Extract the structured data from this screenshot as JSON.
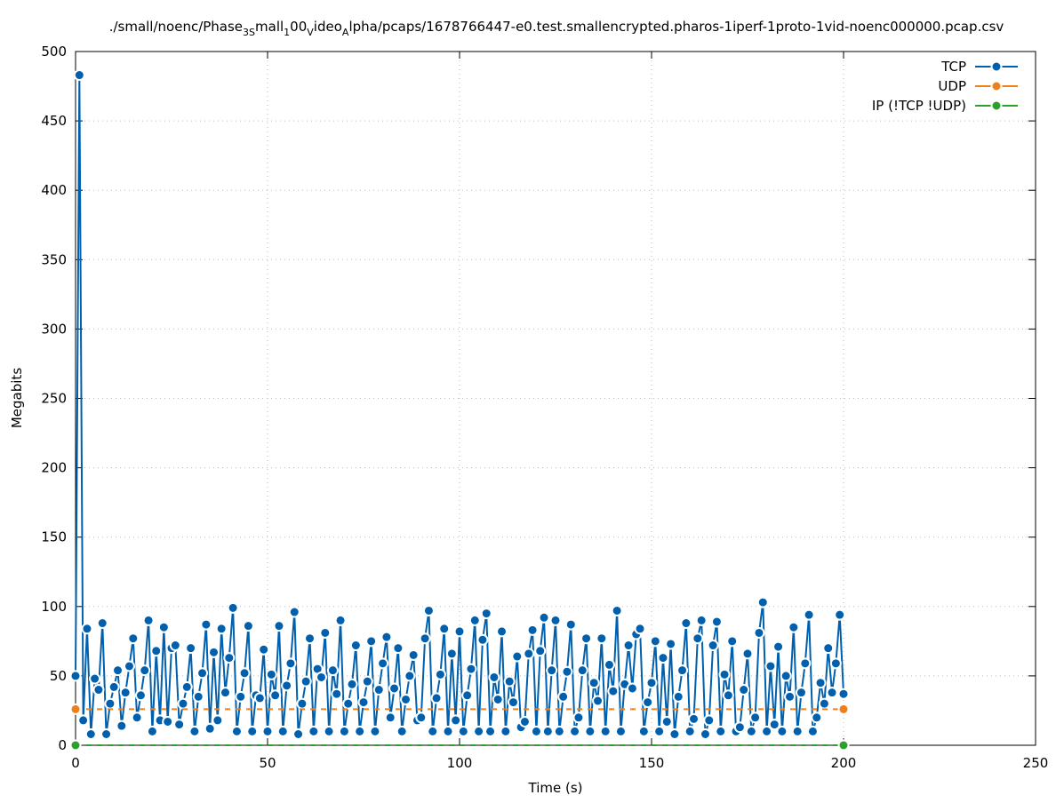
{
  "chart_data": {
    "type": "line",
    "title_parts": [
      {
        "text": "./small/noenc/Phase",
        "sub": false
      },
      {
        "text": "3S",
        "sub": true
      },
      {
        "text": "mall",
        "sub": false
      },
      {
        "text": "1",
        "sub": true
      },
      {
        "text": "00",
        "sub": false
      },
      {
        "text": "V",
        "sub": true
      },
      {
        "text": "ideo",
        "sub": false
      },
      {
        "text": "A",
        "sub": true
      },
      {
        "text": "lpha/pcaps/1678766447-e0.test.smallencrypted.pharos-1iperf-1proto-1vid-noenc000000.pcap.csv",
        "sub": false
      }
    ],
    "xlabel": "Time (s)",
    "ylabel": "Megabits",
    "xlim": [
      0,
      250
    ],
    "xticks": [
      0,
      50,
      100,
      150,
      200,
      250
    ],
    "ylim": [
      0,
      500
    ],
    "yticks": [
      0,
      50,
      100,
      150,
      200,
      250,
      300,
      350,
      400,
      450,
      500
    ],
    "grid": true,
    "legend": "top-right",
    "series": [
      {
        "name": "TCP",
        "color": "#0060ad",
        "x": [
          0,
          1,
          2,
          3,
          4,
          5,
          6,
          7,
          8,
          9,
          10,
          11,
          12,
          13,
          14,
          15,
          16,
          17,
          18,
          19,
          20,
          21,
          22,
          23,
          24,
          25,
          26,
          27,
          28,
          29,
          30,
          31,
          32,
          33,
          34,
          35,
          36,
          37,
          38,
          39,
          40,
          41,
          42,
          43,
          44,
          45,
          46,
          47,
          48,
          49,
          50,
          51,
          52,
          53,
          54,
          55,
          56,
          57,
          58,
          59,
          60,
          61,
          62,
          63,
          64,
          65,
          66,
          67,
          68,
          69,
          70,
          71,
          72,
          73,
          74,
          75,
          76,
          77,
          78,
          79,
          80,
          81,
          82,
          83,
          84,
          85,
          86,
          87,
          88,
          89,
          90,
          91,
          92,
          93,
          94,
          95,
          96,
          97,
          98,
          99,
          100,
          101,
          102,
          103,
          104,
          105,
          106,
          107,
          108,
          109,
          110,
          111,
          112,
          113,
          114,
          115,
          116,
          117,
          118,
          119,
          120,
          121,
          122,
          123,
          124,
          125,
          126,
          127,
          128,
          129,
          130,
          131,
          132,
          133,
          134,
          135,
          136,
          137,
          138,
          139,
          140,
          141,
          142,
          143,
          144,
          145,
          146,
          147,
          148,
          149,
          150,
          151,
          152,
          153,
          154,
          155,
          156,
          157,
          158,
          159,
          160,
          161,
          162,
          163,
          164,
          165,
          166,
          167,
          168,
          169,
          170,
          171,
          172,
          173,
          174,
          175,
          176,
          177,
          178,
          179,
          180,
          181,
          182,
          183,
          184,
          185,
          186,
          187,
          188,
          189,
          190,
          191,
          192,
          193,
          194,
          195,
          196,
          197,
          198,
          199,
          200
        ],
        "values": [
          50,
          483,
          18,
          84,
          8,
          48,
          40,
          88,
          8,
          30,
          42,
          54,
          14,
          38,
          57,
          77,
          20,
          36,
          54,
          90,
          10,
          68,
          18,
          85,
          17,
          70,
          72,
          15,
          30,
          42,
          70,
          10,
          35,
          52,
          87,
          12,
          67,
          18,
          84,
          38,
          63,
          99,
          10,
          35,
          52,
          86,
          10,
          36,
          34,
          69,
          10,
          51,
          36,
          86,
          10,
          43,
          59,
          96,
          8,
          30,
          46,
          77,
          10,
          55,
          49,
          81,
          10,
          54,
          37,
          90,
          10,
          30,
          44,
          72,
          10,
          31,
          46,
          75,
          10,
          40,
          59,
          78,
          20,
          41,
          70,
          10,
          33,
          50,
          65,
          18,
          20,
          77,
          97,
          10,
          34,
          51,
          84,
          10,
          66,
          18,
          82,
          10,
          36,
          55,
          90,
          10,
          76,
          95,
          10,
          49,
          33,
          82,
          10,
          46,
          31,
          64,
          13,
          17,
          66,
          83,
          10,
          68,
          92,
          10,
          54,
          90,
          10,
          35,
          53,
          87,
          10,
          20,
          54,
          77,
          10,
          45,
          32,
          77,
          10,
          58,
          39,
          97,
          10,
          44,
          72,
          41,
          80,
          84,
          10,
          31,
          45,
          75,
          10,
          63,
          17,
          73,
          8,
          35,
          54,
          88,
          10,
          19,
          77,
          90,
          8,
          18,
          72,
          89,
          10,
          51,
          36,
          75,
          10,
          13,
          40,
          66,
          10,
          20,
          81,
          103,
          10,
          57,
          15,
          71,
          10,
          50,
          35,
          85,
          10,
          38,
          59,
          94,
          10,
          20,
          45,
          30,
          70,
          38,
          59,
          94,
          37
        ]
      },
      {
        "name": "UDP",
        "color": "#f07f1a",
        "x": [
          0,
          200
        ],
        "values": [
          26,
          26
        ]
      },
      {
        "name": "IP (!TCP  !UDP)",
        "color": "#2ca02c",
        "x": [
          0,
          200
        ],
        "values": [
          0,
          0
        ]
      }
    ]
  }
}
